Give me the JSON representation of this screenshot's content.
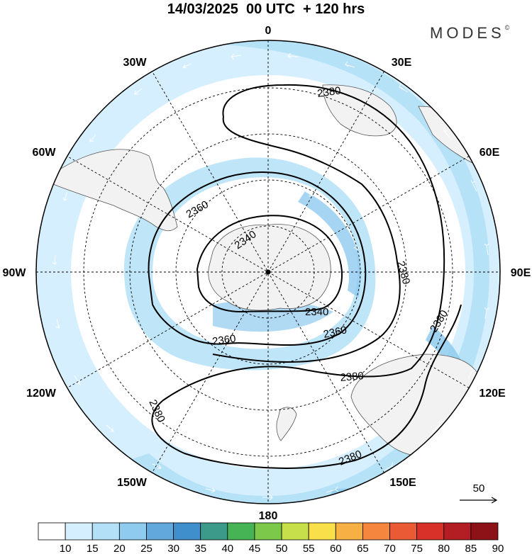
{
  "title": "14/03/2025  00 UTC  + 120 hrs",
  "brand": {
    "name": "MODES",
    "mark": "©"
  },
  "longitude_labels": [
    "0",
    "30E",
    "60E",
    "90E",
    "120E",
    "150E",
    "180",
    "150W",
    "120W",
    "90W",
    "60W",
    "30W"
  ],
  "contours": [
    {
      "value": "2340"
    },
    {
      "value": "2360"
    },
    {
      "value": "2380"
    }
  ],
  "contour_labels": [
    "2380",
    "2360",
    "2340",
    "2380",
    "2340",
    "2360",
    "2360",
    "2380",
    "2380",
    "2380",
    "2380"
  ],
  "wind_reference": {
    "value": "50"
  },
  "colorbar": {
    "labels": [
      "10",
      "15",
      "20",
      "25",
      "30",
      "35",
      "40",
      "45",
      "50",
      "55",
      "60",
      "65",
      "70",
      "75",
      "80",
      "85",
      "90"
    ],
    "colors": [
      "#ffffff",
      "#d6efff",
      "#b3e0f7",
      "#8ecbef",
      "#62a8dd",
      "#3f8fcc",
      "#3c9a8a",
      "#46b455",
      "#7cc84a",
      "#c7df4a",
      "#f9e04b",
      "#f7b043",
      "#f4863d",
      "#ea5a34",
      "#d7312a",
      "#b31e24",
      "#8c1217"
    ]
  },
  "colors": {
    "land": "#f2f2f2",
    "light_wind": "#dcf0fb",
    "mid_wind": "#b7dff4",
    "strong_wind": "#8fc9ec",
    "contour": "#000000",
    "graticule": "#000000"
  }
}
